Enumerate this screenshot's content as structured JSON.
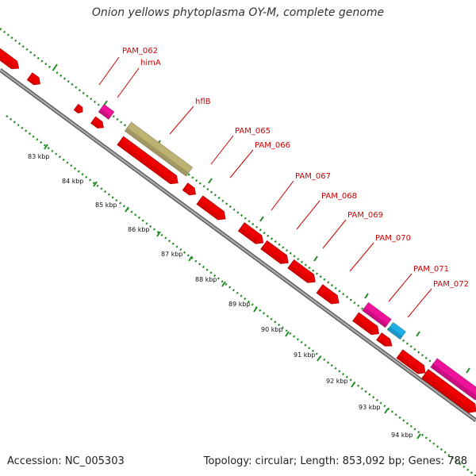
{
  "title": "Onion yellows phytoplasma OY-M, complete genome",
  "footer": {
    "accession": "Accession: NC_005303",
    "summary": "Topology: circular; Length: 853,092 bp; Genes: 788"
  },
  "colors": {
    "cds": "#ee0000",
    "cds_dark": "#b30000",
    "pink": "#ee1199",
    "cyan": "#1cb0e6",
    "khaki": "#bdb272",
    "backbone": "#8c8c8c",
    "ticks": "#228b22",
    "label": "#cc0000"
  },
  "gene_labels": [
    "PAM_062",
    "himA",
    "hflB",
    "PAM_065",
    "PAM_066",
    "PAM_067",
    "PAM_068",
    "PAM_069",
    "PAM_070",
    "PAM_071",
    "PAM_072"
  ],
  "kbp_labels": [
    "83 kbp",
    "84 kbp",
    "85 kbp",
    "86 kbp",
    "87 kbp",
    "88 kbp",
    "89 kbp",
    "90 kbp",
    "91 kbp",
    "92 kbp",
    "93 kbp",
    "94 kbp"
  ]
}
